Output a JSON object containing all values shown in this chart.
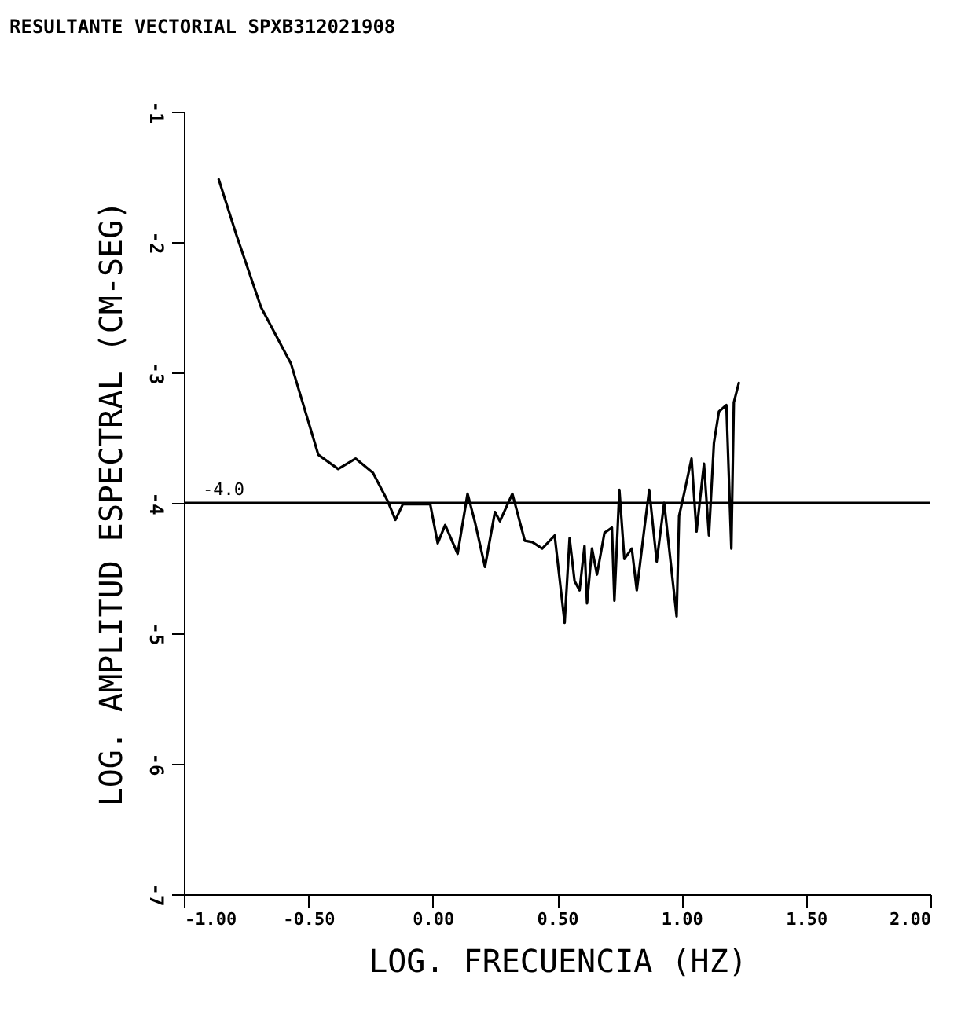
{
  "chart_data": {
    "type": "line",
    "title": "RESULTANTE VECTORIAL SPXB312021908",
    "xlabel": "LOG. FRECUENCIA (HZ)",
    "ylabel": "LOG. AMPLITUD ESPECTRAL (CM-SEG)",
    "xlim": [
      -1,
      2
    ],
    "xticks": [
      {
        "value": -1,
        "label": "-1.00"
      },
      {
        "value": -0.5,
        "label": "-0.50"
      },
      {
        "value": 0,
        "label": "0.00"
      },
      {
        "value": 0.5,
        "label": "0.50"
      },
      {
        "value": 1,
        "label": "1.00"
      },
      {
        "value": 1.5,
        "label": "1.50"
      },
      {
        "value": 2,
        "label": "2.00"
      }
    ],
    "ylim": [
      -7,
      -1
    ],
    "yticks": [
      -1,
      -2,
      -3,
      -4,
      -5,
      -6,
      -7
    ],
    "grid": false,
    "marker": "none",
    "line_style": "solid",
    "ref_lines": [
      {
        "axis": "y",
        "value": -4,
        "label": "-4.0",
        "color": "#000000"
      }
    ],
    "series": [
      {
        "color": "#000000",
        "x": [
          -0.86,
          -0.79,
          -0.69,
          -0.57,
          -0.46,
          -0.38,
          -0.31,
          -0.24,
          -0.18,
          -0.15,
          -0.12,
          -0.01,
          0.02,
          0.05,
          0.1,
          0.14,
          0.17,
          0.21,
          0.25,
          0.27,
          0.32,
          0.37,
          0.4,
          0.44,
          0.49,
          0.53,
          0.55,
          0.57,
          0.59,
          0.61,
          0.62,
          0.64,
          0.66,
          0.69,
          0.72,
          0.73,
          0.75,
          0.77,
          0.8,
          0.82,
          0.85,
          0.87,
          0.9,
          0.93,
          0.98,
          0.99,
          1.01,
          1.04,
          1.06,
          1.09,
          1.11,
          1.13,
          1.15,
          1.18,
          1.2,
          1.21,
          1.23
        ],
        "values": [
          -1.52,
          -1.94,
          -2.5,
          -2.93,
          -3.63,
          -3.74,
          -3.66,
          -3.77,
          -3.99,
          -4.13,
          -4.01,
          -4.01,
          -4.31,
          -4.17,
          -4.39,
          -3.93,
          -4.15,
          -4.49,
          -4.07,
          -4.14,
          -3.93,
          -4.29,
          -4.3,
          -4.35,
          -4.25,
          -4.92,
          -4.27,
          -4.6,
          -4.67,
          -4.33,
          -4.77,
          -4.35,
          -4.55,
          -4.23,
          -4.19,
          -4.75,
          -3.9,
          -4.43,
          -4.35,
          -4.67,
          -4.2,
          -3.9,
          -4.45,
          -4.0,
          -4.87,
          -4.1,
          -3.93,
          -3.66,
          -4.22,
          -3.7,
          -4.25,
          -3.54,
          -3.3,
          -3.25,
          -4.35,
          -3.23,
          -3.08
        ]
      }
    ]
  }
}
